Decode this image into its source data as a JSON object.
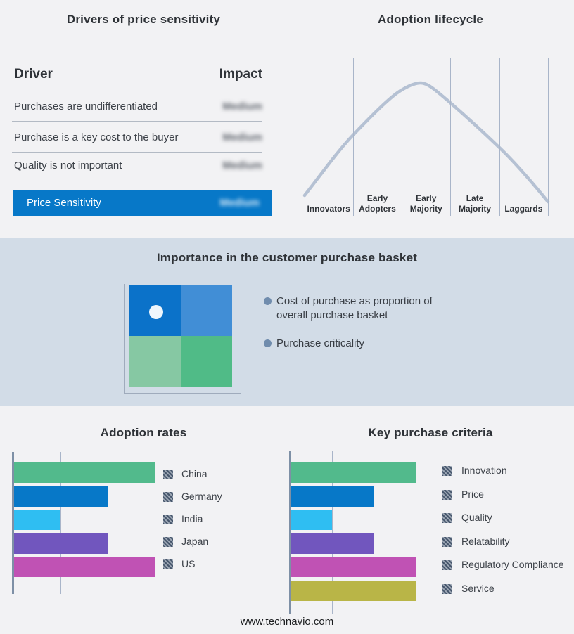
{
  "page": {
    "background": "#f2f2f4",
    "band_background": "#d2dce7",
    "footer_url": "www.technavio.com"
  },
  "drivers_panel": {
    "title": "Drivers of price sensitivity",
    "columns": {
      "driver": "Driver",
      "impact": "Impact"
    },
    "rows": [
      {
        "driver": "Purchases are undifferentiated",
        "impact": "Medium"
      },
      {
        "driver": "Purchase is a key cost to the buyer",
        "impact": "Medium"
      },
      {
        "driver": "Quality is not important",
        "impact": "Medium"
      }
    ],
    "highlight_row": {
      "label": "Price Sensitivity",
      "impact": "Medium",
      "color": "#0778c8"
    }
  },
  "lifecycle_panel": {
    "title": "Adoption lifecycle"
  },
  "basket_panel": {
    "title": "Importance in the customer purchase basket",
    "bullets": [
      "Cost of purchase as proportion of overall purchase basket",
      "Purchase criticality"
    ],
    "quadrant_colors": {
      "top_left": "#0b72c9",
      "top_right": "#418ed6",
      "bottom_left": "#86c8a3",
      "bottom_right": "#50bb87",
      "dot": "#eef6fc"
    }
  },
  "chart_data": [
    {
      "id": "adoption_lifecycle",
      "type": "line",
      "title": "Adoption lifecycle",
      "shape": "bell-curve",
      "categories": [
        "Innovators",
        "Early Adopters",
        "Early Majority",
        "Late Majority",
        "Laggards"
      ],
      "peak_category": "Early Majority",
      "curve_color": "#b5c1d3",
      "grid": true,
      "legend_position": "none"
    },
    {
      "id": "adoption_rates",
      "type": "bar",
      "orientation": "horizontal",
      "title": "Adoption rates",
      "categories": [
        "China",
        "Germany",
        "India",
        "Japan",
        "US"
      ],
      "values": [
        3,
        2,
        1,
        2,
        3
      ],
      "xlim": [
        0,
        3
      ],
      "grid": true,
      "legend_position": "right",
      "colors": [
        "#52ba8c",
        "#0778c8",
        "#2fbef2",
        "#7156be",
        "#c052b4"
      ]
    },
    {
      "id": "key_purchase_criteria",
      "type": "bar",
      "orientation": "horizontal",
      "title": "Key purchase criteria",
      "categories": [
        "Innovation",
        "Price",
        "Quality",
        "Relatability",
        "Regulatory Compliance",
        "Service"
      ],
      "values": [
        3,
        2,
        1,
        2,
        3,
        3
      ],
      "xlim": [
        0,
        3
      ],
      "grid": true,
      "legend_position": "right",
      "colors": [
        "#52ba8c",
        "#0778c8",
        "#2fbef2",
        "#7156be",
        "#c052b4",
        "#b9b547"
      ]
    }
  ]
}
